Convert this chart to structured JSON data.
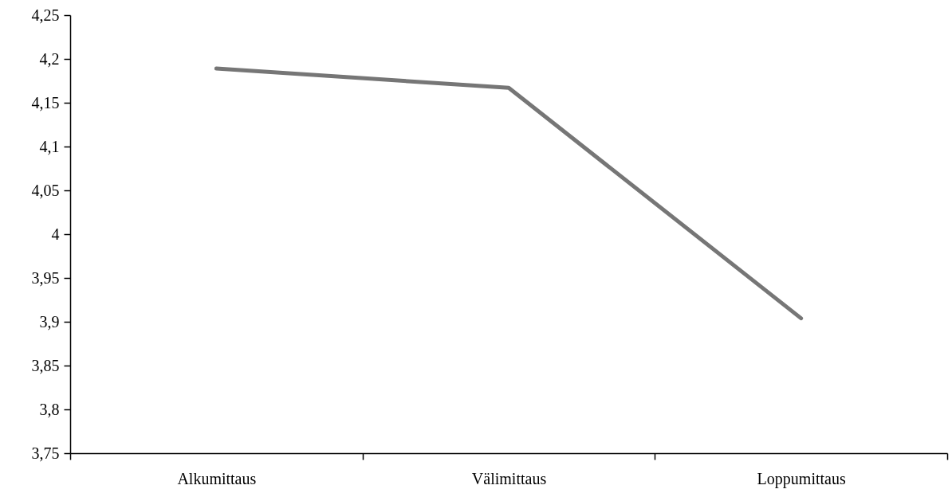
{
  "chart_data": {
    "type": "line",
    "categories": [
      "Alkumittaus",
      "Välimittaus",
      "Loppumittaus"
    ],
    "series": [
      {
        "color": "#767676",
        "values": [
          4.189,
          4.167,
          3.904
        ]
      }
    ],
    "ylim": [
      3.75,
      4.25
    ],
    "yticks": [
      {
        "value": 3.75,
        "label": "3,75"
      },
      {
        "value": 3.8,
        "label": "3,8"
      },
      {
        "value": 3.85,
        "label": "3,85"
      },
      {
        "value": 3.9,
        "label": "3,9"
      },
      {
        "value": 3.95,
        "label": "3,95"
      },
      {
        "value": 4,
        "label": "4"
      },
      {
        "value": 4.05,
        "label": "4,05"
      },
      {
        "value": 4.1,
        "label": "4,1"
      },
      {
        "value": 4.15,
        "label": "4,15"
      },
      {
        "value": 4.2,
        "label": "4,2"
      },
      {
        "value": 4.25,
        "label": "4,25"
      }
    ],
    "line_style": "solid"
  }
}
